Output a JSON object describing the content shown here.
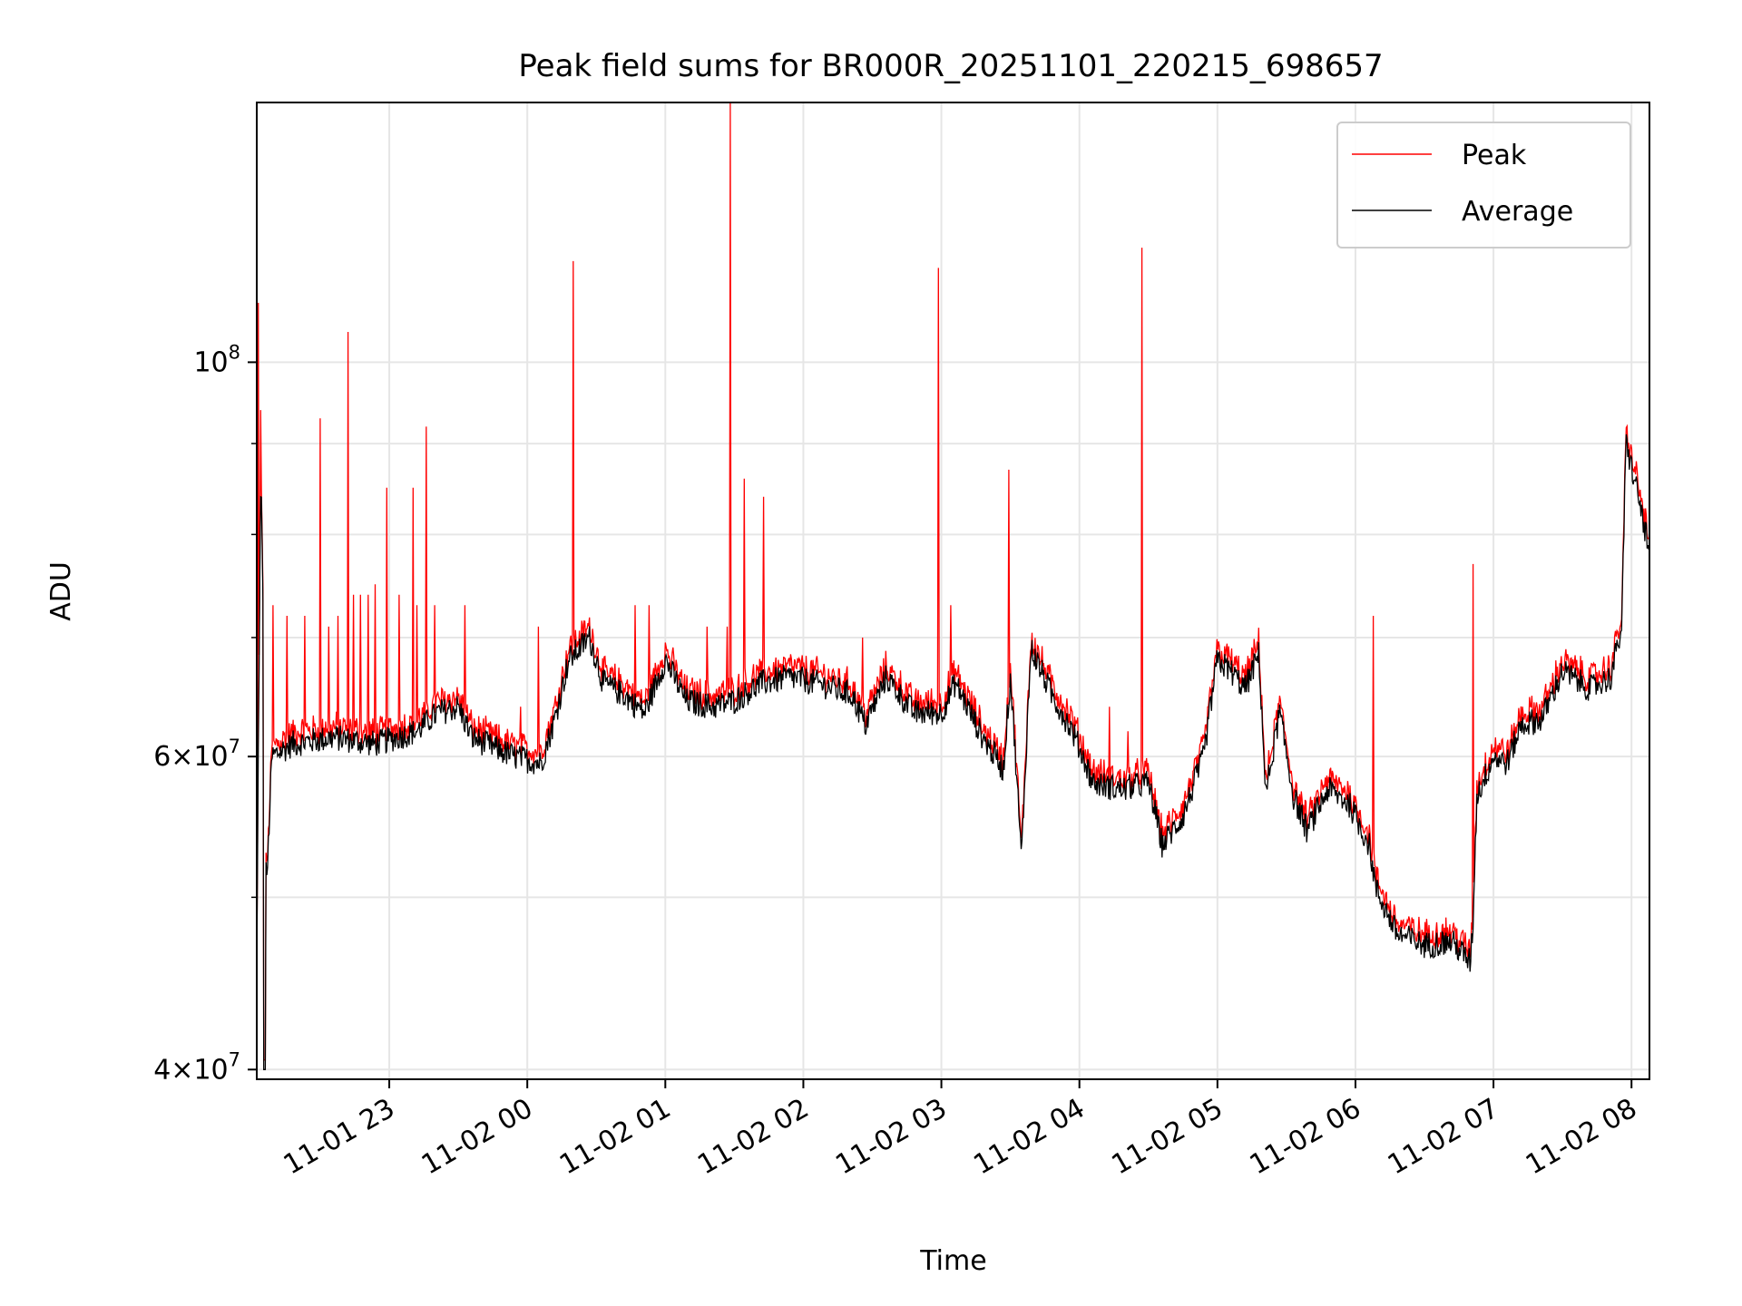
{
  "chart_data": {
    "type": "line",
    "title": "Peak field sums for BR000R_20251101_220215_698657",
    "xlabel": "Time",
    "ylabel": "ADU",
    "yscale": "log",
    "ylim": [
      39500000,
      140000000
    ],
    "xlim_hours": [
      22.04,
      32.13
    ],
    "grid": true,
    "legend_position": "upper right",
    "x_ticks": [
      {
        "hour": 23,
        "label": "11-01 23"
      },
      {
        "hour": 24,
        "label": "11-02 00"
      },
      {
        "hour": 25,
        "label": "11-02 01"
      },
      {
        "hour": 26,
        "label": "11-02 02"
      },
      {
        "hour": 27,
        "label": "11-02 03"
      },
      {
        "hour": 28,
        "label": "11-02 04"
      },
      {
        "hour": 29,
        "label": "11-02 05"
      },
      {
        "hour": 30,
        "label": "11-02 06"
      },
      {
        "hour": 31,
        "label": "11-02 07"
      },
      {
        "hour": 32,
        "label": "11-02 08"
      }
    ],
    "y_major_ticks": [
      {
        "value": 40000000,
        "base": "4",
        "exp": "7",
        "mult": true
      },
      {
        "value": 60000000,
        "base": "6",
        "exp": "7",
        "mult": true
      },
      {
        "value": 100000000,
        "base": "10",
        "exp": "8",
        "mult": false
      }
    ],
    "y_minor_ticks": [
      50000000,
      70000000,
      80000000,
      90000000
    ],
    "baseline_avg": [
      [
        22.04,
        45000000
      ],
      [
        22.07,
        86000000
      ],
      [
        22.09,
        70000000
      ],
      [
        22.11,
        50000000
      ],
      [
        22.15,
        60000000
      ],
      [
        22.3,
        61000000
      ],
      [
        22.6,
        61500000
      ],
      [
        22.9,
        61000000
      ],
      [
        23.2,
        62000000
      ],
      [
        23.35,
        63500000
      ],
      [
        23.5,
        64000000
      ],
      [
        23.6,
        61500000
      ],
      [
        23.9,
        60000000
      ],
      [
        24.1,
        59500000
      ],
      [
        24.2,
        63000000
      ],
      [
        24.3,
        68000000
      ],
      [
        24.45,
        70000000
      ],
      [
        24.55,
        66000000
      ],
      [
        24.7,
        65000000
      ],
      [
        24.85,
        63500000
      ],
      [
        25.0,
        68000000
      ],
      [
        25.15,
        64500000
      ],
      [
        25.35,
        64000000
      ],
      [
        25.5,
        64500000
      ],
      [
        25.7,
        66000000
      ],
      [
        25.9,
        66500000
      ],
      [
        26.1,
        66000000
      ],
      [
        26.35,
        65000000
      ],
      [
        26.45,
        62500000
      ],
      [
        26.6,
        66500000
      ],
      [
        26.8,
        63500000
      ],
      [
        27.0,
        63500000
      ],
      [
        27.1,
        66000000
      ],
      [
        27.3,
        61500000
      ],
      [
        27.45,
        59000000
      ],
      [
        27.5,
        66500000
      ],
      [
        27.58,
        52500000
      ],
      [
        27.65,
        69000000
      ],
      [
        27.8,
        65000000
      ],
      [
        27.95,
        62000000
      ],
      [
        28.1,
        58000000
      ],
      [
        28.3,
        57500000
      ],
      [
        28.5,
        58000000
      ],
      [
        28.6,
        53500000
      ],
      [
        28.75,
        55500000
      ],
      [
        28.9,
        60000000
      ],
      [
        29.0,
        68000000
      ],
      [
        29.1,
        67000000
      ],
      [
        29.2,
        65500000
      ],
      [
        29.3,
        68500000
      ],
      [
        29.35,
        57000000
      ],
      [
        29.45,
        63500000
      ],
      [
        29.55,
        57000000
      ],
      [
        29.65,
        54500000
      ],
      [
        29.8,
        57500000
      ],
      [
        29.95,
        56500000
      ],
      [
        30.1,
        53500000
      ],
      [
        30.15,
        50500000
      ],
      [
        30.3,
        47700000
      ],
      [
        30.5,
        47000000
      ],
      [
        30.7,
        47200000
      ],
      [
        30.83,
        46000000
      ],
      [
        30.85,
        48000000
      ],
      [
        30.88,
        57000000
      ],
      [
        31.0,
        60000000
      ],
      [
        31.1,
        59500000
      ],
      [
        31.2,
        62500000
      ],
      [
        31.35,
        63000000
      ],
      [
        31.5,
        67000000
      ],
      [
        31.7,
        65500000
      ],
      [
        31.85,
        66500000
      ],
      [
        31.93,
        71000000
      ],
      [
        31.96,
        90000000
      ],
      [
        32.05,
        84000000
      ],
      [
        32.13,
        78000000
      ]
    ],
    "peak_spikes": [
      [
        22.05,
        108000000
      ],
      [
        22.07,
        94000000
      ],
      [
        22.16,
        73000000
      ],
      [
        22.26,
        72000000
      ],
      [
        22.39,
        72000000
      ],
      [
        22.5,
        93000000
      ],
      [
        22.56,
        71000000
      ],
      [
        22.63,
        72000000
      ],
      [
        22.7,
        104000000
      ],
      [
        22.74,
        74000000
      ],
      [
        22.79,
        74000000
      ],
      [
        22.85,
        74000000
      ],
      [
        22.9,
        75000000
      ],
      [
        22.98,
        85000000
      ],
      [
        23.07,
        74000000
      ],
      [
        23.17,
        85000000
      ],
      [
        23.2,
        73000000
      ],
      [
        23.27,
        92000000
      ],
      [
        23.33,
        73000000
      ],
      [
        23.55,
        73000000
      ],
      [
        23.95,
        64000000
      ],
      [
        24.08,
        71000000
      ],
      [
        24.33,
        114000000
      ],
      [
        24.78,
        73000000
      ],
      [
        24.88,
        73000000
      ],
      [
        25.3,
        71000000
      ],
      [
        25.45,
        71000000
      ],
      [
        25.47,
        140000000
      ],
      [
        25.57,
        86000000
      ],
      [
        25.71,
        84000000
      ],
      [
        26.43,
        70000000
      ],
      [
        26.98,
        113000000
      ],
      [
        27.07,
        73000000
      ],
      [
        27.49,
        87000000
      ],
      [
        28.22,
        64000000
      ],
      [
        28.35,
        62000000
      ],
      [
        28.45,
        116000000
      ],
      [
        30.13,
        72000000
      ],
      [
        30.85,
        77000000
      ]
    ],
    "series": [
      {
        "name": "Peak",
        "color": "#ff0000"
      },
      {
        "name": "Average",
        "color": "#000000"
      }
    ]
  }
}
